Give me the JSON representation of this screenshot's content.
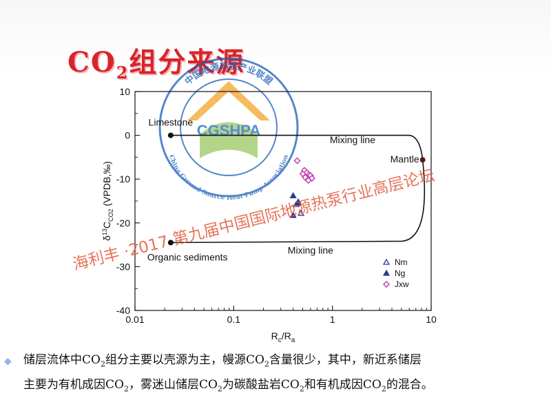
{
  "slide": {
    "title_main": "CO",
    "title_sub": "2",
    "title_rest": "组分来源"
  },
  "watermark": {
    "logo_text": "CGSHPA",
    "ring_top_text": "中国地源热泵产业联盟",
    "ring_bottom_text": "China Ground Source Heat Pump Association",
    "banner_text": "海利丰 ·2017  第九届中国国际地源热泵行业高层论坛",
    "colors": {
      "ring": "#1b5eb6",
      "logo_blue": "#1d67c2",
      "logo_orange": "#f3a32a",
      "logo_green": "#7fb93b",
      "banner": "#e25b3d"
    }
  },
  "chart_data": {
    "type": "scatter",
    "xlabel": "Rc/Ra",
    "ylabel": "δ13CCO2 (VPDB,‰)",
    "xscale": "log",
    "xlim": [
      0.01,
      10
    ],
    "ylim": [
      -40,
      10
    ],
    "x_ticks": [
      {
        "value": 0.01,
        "label": "0.01"
      },
      {
        "value": 0.1,
        "label": "0.1"
      },
      {
        "value": 1,
        "label": "1"
      },
      {
        "value": 10,
        "label": "10"
      }
    ],
    "y_ticks": [
      {
        "value": 10,
        "label": "10"
      },
      {
        "value": 0,
        "label": "0"
      },
      {
        "value": -10,
        "label": "-10"
      },
      {
        "value": -20,
        "label": "-20"
      },
      {
        "value": -30,
        "label": "-30"
      },
      {
        "value": -40,
        "label": "-40"
      }
    ],
    "end_members": [
      {
        "name": "Limestone",
        "x": 0.023,
        "y": 0
      },
      {
        "name": "Mantle",
        "x": 8.2,
        "y": -5.6
      },
      {
        "name": "Organic sediments",
        "x": 0.023,
        "y": -24.5
      }
    ],
    "mixing_line_labels": [
      {
        "text": "Mixing line",
        "x": 1.6,
        "y": -1.8
      },
      {
        "text": "Mixing line",
        "x": 0.6,
        "y": -27
      }
    ],
    "legend_position": "bottom-right",
    "series": [
      {
        "name": "Nm",
        "marker": "triangle-open",
        "color": "#2d3a8c",
        "points": [
          [
            0.43,
            -15.8
          ],
          [
            0.48,
            -17.8
          ],
          [
            0.45,
            -15.2
          ]
        ]
      },
      {
        "name": "Ng",
        "marker": "triangle-filled",
        "color": "#2d3a8c",
        "points": [
          [
            0.4,
            -18.3
          ],
          [
            0.4,
            -13.8
          ],
          [
            0.45,
            -15.5
          ]
        ]
      },
      {
        "name": "Jxw",
        "marker": "diamond-open",
        "color": "#c040b0",
        "points": [
          [
            0.44,
            -5.8
          ],
          [
            0.52,
            -8.0
          ],
          [
            0.55,
            -8.5
          ],
          [
            0.58,
            -9.0
          ],
          [
            0.53,
            -9.6
          ],
          [
            0.6,
            -9.2
          ],
          [
            0.62,
            -9.8
          ],
          [
            0.57,
            -10.3
          ],
          [
            0.5,
            -8.8
          ]
        ]
      }
    ]
  },
  "caption": {
    "line1": [
      {
        "t": "储层流体中CO"
      },
      {
        "t": "2",
        "sub": true
      },
      {
        "t": "组分主要以壳源为主，幔源CO"
      },
      {
        "t": "2",
        "sub": true
      },
      {
        "t": "含量很少，其中，新近系储层"
      }
    ],
    "line2": [
      {
        "t": "主要为有机成因CO"
      },
      {
        "t": "2",
        "sub": true
      },
      {
        "t": "，雾迷山储层CO"
      },
      {
        "t": "2",
        "sub": true
      },
      {
        "t": "为碳酸盐岩CO"
      },
      {
        "t": "2",
        "sub": true
      },
      {
        "t": "和有机成因CO"
      },
      {
        "t": "2",
        "sub": true
      },
      {
        "t": "的混合。"
      }
    ]
  }
}
